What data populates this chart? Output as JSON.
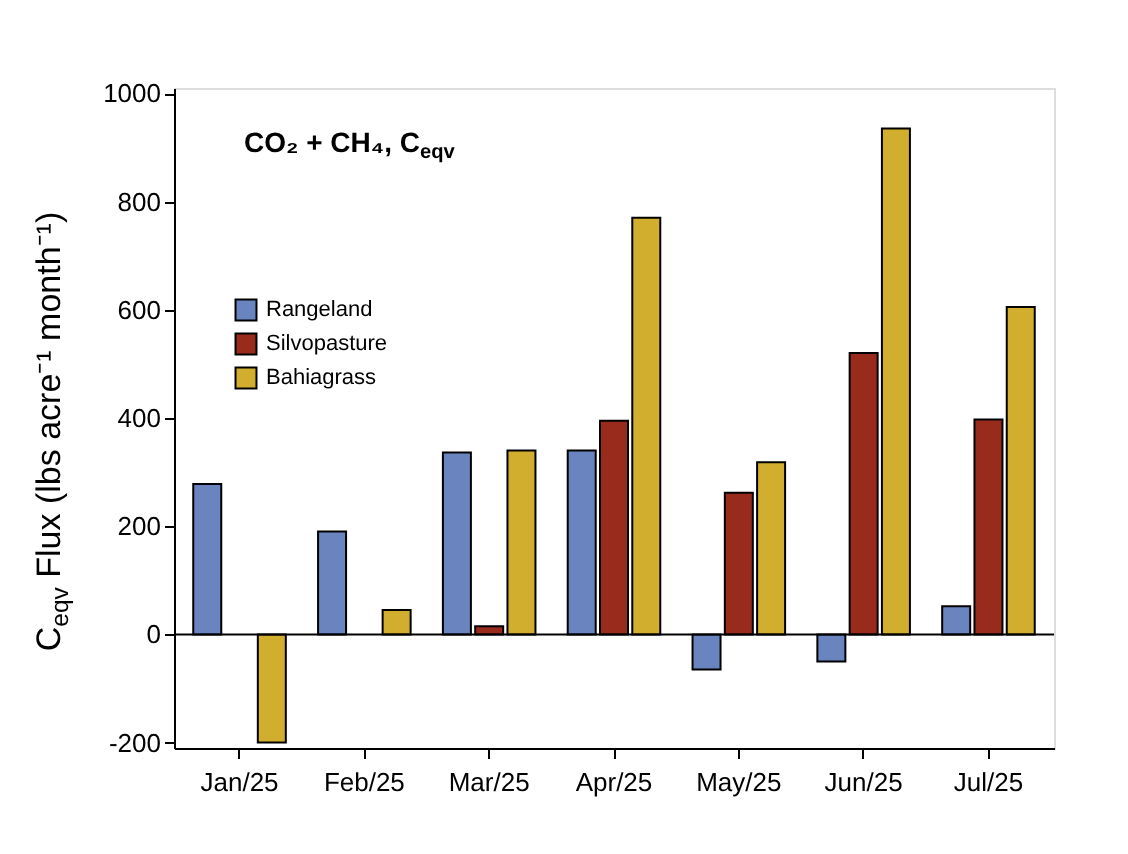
{
  "chart_data": {
    "type": "bar",
    "title": "CO₂ + CH₄, C$_{eqv}$",
    "ylabel": "C$_{eqv}$ Flux (lbs acre⁻¹ month⁻¹)",
    "categories": [
      "Jan/25",
      "Feb/25",
      "Mar/25",
      "Apr/25",
      "May/25",
      "Jun/25",
      "Jul/25"
    ],
    "series": [
      {
        "name": "Rangeland",
        "color": "#6a84bf",
        "values": [
          278,
          190,
          336,
          340,
          -65,
          -50,
          52
        ]
      },
      {
        "name": "Silvopasture",
        "color": "#992b1c",
        "values": [
          null,
          null,
          15,
          395,
          262,
          520,
          397
        ]
      },
      {
        "name": "Bahiagrass",
        "color": "#d2ae2e",
        "values": [
          -200,
          45,
          340,
          770,
          318,
          935,
          605
        ]
      }
    ],
    "ylim": [
      -210,
      1010
    ],
    "yticks": [
      -200,
      0,
      200,
      400,
      600,
      800,
      {
        "value": 1000,
        "label": "1000"
      }
    ],
    "ref_lines": [
      {
        "axis": "y",
        "value": 0
      }
    ],
    "grid": false,
    "legend": "top left"
  }
}
